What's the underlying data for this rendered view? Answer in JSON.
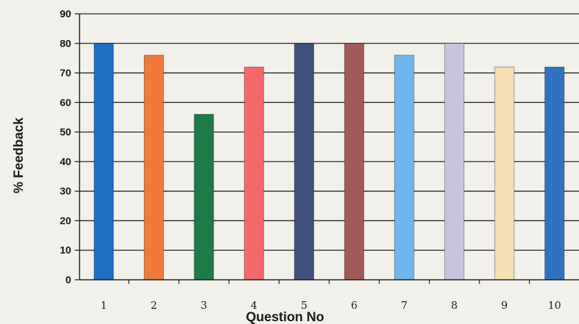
{
  "chart_data": {
    "type": "bar",
    "title": "",
    "xlabel": "Question No",
    "ylabel": "% Feedback",
    "categories": [
      "1",
      "2",
      "3",
      "4",
      "5",
      "6",
      "7",
      "8",
      "9",
      "10"
    ],
    "values": [
      80,
      76,
      56,
      72,
      80,
      80,
      76,
      80,
      72,
      72
    ],
    "colors": [
      "#1f6fc5",
      "#f07a3c",
      "#1e7a46",
      "#f46a6a",
      "#3f4f7e",
      "#a05a58",
      "#6fb6ef",
      "#c6c3dc",
      "#f6dfb2",
      "#2f72c2"
    ],
    "ylim": [
      0,
      90
    ],
    "yticks": [
      0,
      10,
      20,
      30,
      40,
      50,
      60,
      70,
      80,
      90
    ],
    "grid": true,
    "legend": "none"
  }
}
